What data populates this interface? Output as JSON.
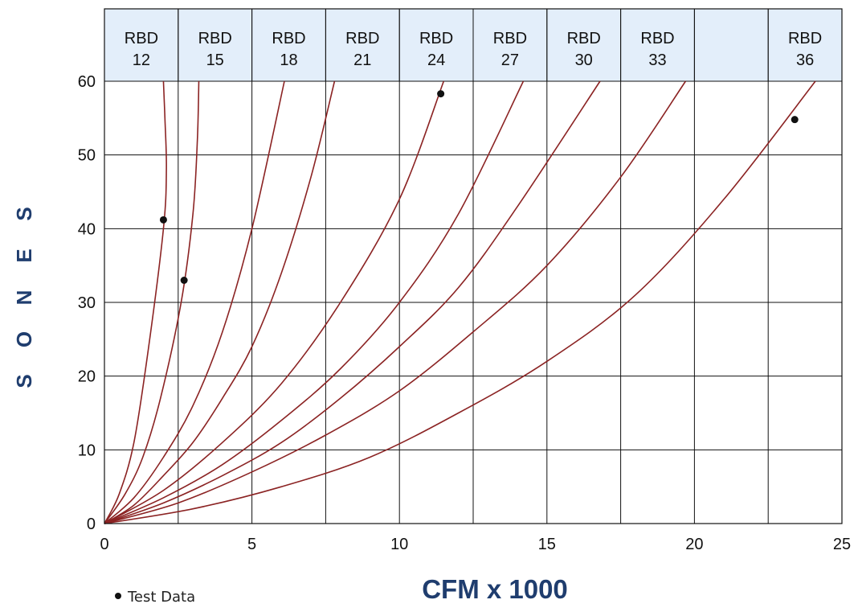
{
  "chart_data": {
    "type": "line",
    "xlabel": "CFM x 1000",
    "ylabel": "SONES",
    "xlim": [
      0,
      25
    ],
    "ylim": [
      0,
      60
    ],
    "x_ticks": [
      "0",
      "5",
      "10",
      "15",
      "20",
      "25"
    ],
    "y_ticks": [
      "0",
      "10",
      "20",
      "30",
      "40",
      "50",
      "60"
    ],
    "grid": true,
    "header_cells": [
      {
        "line1": "RBD",
        "line2": "12"
      },
      {
        "line1": "RBD",
        "line2": "15"
      },
      {
        "line1": "RBD",
        "line2": "18"
      },
      {
        "line1": "RBD",
        "line2": "21"
      },
      {
        "line1": "RBD",
        "line2": "24"
      },
      {
        "line1": "RBD",
        "line2": "27"
      },
      {
        "line1": "RBD",
        "line2": "30"
      },
      {
        "line1": "RBD",
        "line2": "33"
      },
      {
        "line1": "",
        "line2": ""
      },
      {
        "line1": "RBD",
        "line2": "36"
      }
    ],
    "series": [
      {
        "name": "RBD 12",
        "x": [
          0,
          0.5,
          1.0,
          1.5,
          2.0,
          2.1,
          2.05,
          2.0
        ],
        "y": [
          0,
          4,
          11,
          24,
          40,
          48,
          55,
          60
        ]
      },
      {
        "name": "RBD 15",
        "x": [
          0,
          0.7,
          1.3,
          1.9,
          2.6,
          3.0,
          3.15,
          3.2
        ],
        "y": [
          0,
          4,
          9,
          17,
          30,
          42,
          52,
          60
        ]
      },
      {
        "name": "RBD 18",
        "x": [
          0,
          1,
          2,
          3,
          4,
          5,
          6.1
        ],
        "y": [
          0,
          3.5,
          9,
          16,
          26,
          40,
          60
        ]
      },
      {
        "name": "RBD 21",
        "x": [
          0,
          1,
          2,
          3,
          4,
          5,
          6,
          7,
          7.8
        ],
        "y": [
          0,
          2.5,
          6.5,
          11,
          17,
          24,
          34,
          47,
          60
        ]
      },
      {
        "name": "RBD 24",
        "x": [
          0,
          2,
          4,
          6,
          8,
          10,
          11.5
        ],
        "y": [
          0,
          4.5,
          11,
          19,
          30,
          44,
          60
        ]
      },
      {
        "name": "RBD 27",
        "x": [
          0,
          2,
          4,
          6,
          8,
          10,
          12,
          14.2
        ],
        "y": [
          0,
          3.5,
          8,
          14,
          21,
          30,
          42,
          60
        ]
      },
      {
        "name": "RBD 30",
        "x": [
          0,
          2,
          4,
          6,
          8,
          10,
          12,
          14,
          16.8
        ],
        "y": [
          0,
          2.8,
          6.5,
          11,
          17,
          24,
          32,
          43,
          60
        ]
      },
      {
        "name": "RBD 33",
        "x": [
          0,
          2.5,
          5,
          7.5,
          10,
          12.5,
          15,
          17.5,
          19.7
        ],
        "y": [
          0,
          2.8,
          7,
          12,
          18,
          26,
          35,
          47,
          60
        ]
      },
      {
        "name": "RBD 36",
        "x": [
          0,
          3,
          6,
          9,
          12,
          15,
          18,
          21,
          24.1
        ],
        "y": [
          0,
          2,
          5,
          9,
          15,
          22,
          31,
          44,
          60
        ]
      }
    ],
    "test_data": [
      {
        "x": 2.0,
        "y": 41.2
      },
      {
        "x": 2.7,
        "y": 33.0
      },
      {
        "x": 11.4,
        "y": 58.3
      },
      {
        "x": 23.4,
        "y": 54.8
      }
    ],
    "legend": "Test Data",
    "curve_color": "#8b2323",
    "header_fill": "#e3eefa",
    "axis_title_color": "#1f3d6e"
  }
}
